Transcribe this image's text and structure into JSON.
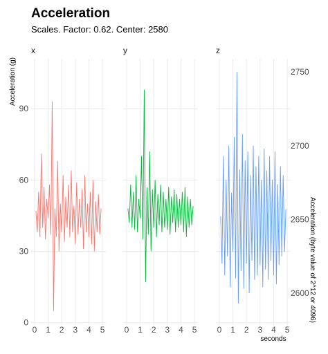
{
  "chart_data": {
    "type": "line",
    "title": "Acceleration",
    "subtitle": "Scales. Factor: 0.62. Center: 2580",
    "y_label": "Acceleration (g)",
    "y2_label": "Acceleration (byte value of 2^12 or 4096)",
    "x_label": "seconds",
    "grid": true,
    "x": [
      0.1,
      0.2,
      0.3,
      0.4,
      0.5,
      0.6,
      0.7,
      0.8,
      0.9,
      1.0,
      1.1,
      1.2,
      1.3,
      1.4,
      1.5,
      1.6,
      1.7,
      1.8,
      1.9,
      2.0,
      2.1,
      2.2,
      2.3,
      2.4,
      2.5,
      2.6,
      2.7,
      2.8,
      2.9,
      3.0,
      3.1,
      3.2,
      3.3,
      3.4,
      3.5,
      3.6,
      3.7,
      3.8,
      3.9,
      4.0,
      4.1,
      4.2,
      4.3,
      4.4,
      4.5,
      4.6,
      4.7,
      4.8,
      4.9
    ],
    "xlim": [
      -0.25,
      5.25
    ],
    "xticks": [
      0,
      1,
      2,
      3,
      4,
      5
    ],
    "ylim": [
      -1,
      111
    ],
    "yticks": [
      0,
      30,
      60,
      90
    ],
    "y2lim": [
      2578.4,
      2759
    ],
    "y2ticks": [
      2600,
      2650,
      2700,
      2750
    ],
    "series": [
      {
        "name": "x",
        "color": "#F8766D",
        "values": [
          47,
          38,
          55,
          36,
          71,
          40,
          57,
          35,
          52,
          44,
          58,
          37,
          93,
          5,
          48,
          36,
          68,
          30,
          50,
          38,
          62,
          34,
          53,
          40,
          58,
          36,
          64,
          38,
          49,
          33,
          59,
          37,
          52,
          40,
          56,
          31,
          62,
          38,
          50,
          36,
          55,
          33,
          60,
          30,
          51,
          38,
          54,
          37,
          48
        ]
      },
      {
        "name": "y",
        "color": "#00BA38",
        "values": [
          48,
          42,
          58,
          40,
          55,
          39,
          62,
          38,
          52,
          44,
          70,
          35,
          98,
          17,
          57,
          37,
          72,
          30,
          56,
          40,
          60,
          36,
          54,
          41,
          58,
          38,
          55,
          40,
          52,
          39,
          57,
          37,
          53,
          42,
          56,
          38,
          54,
          40,
          52,
          41,
          55,
          38,
          57,
          36,
          53,
          40,
          52,
          41,
          49
        ]
      },
      {
        "name": "z",
        "color": "#619CFF",
        "axis": "y2",
        "values": [
          2652,
          2620,
          2693,
          2612,
          2677,
          2625,
          2700,
          2604,
          2668,
          2628,
          2706,
          2610,
          2750,
          2593,
          2684,
          2615,
          2708,
          2603,
          2690,
          2620,
          2696,
          2600,
          2680,
          2622,
          2700,
          2609,
          2686,
          2612,
          2693,
          2619,
          2677,
          2604,
          2698,
          2616,
          2683,
          2609,
          2693,
          2622,
          2677,
          2612,
          2696,
          2606,
          2674,
          2619,
          2686,
          2625,
          2680,
          2628,
          2657
        ]
      }
    ]
  }
}
